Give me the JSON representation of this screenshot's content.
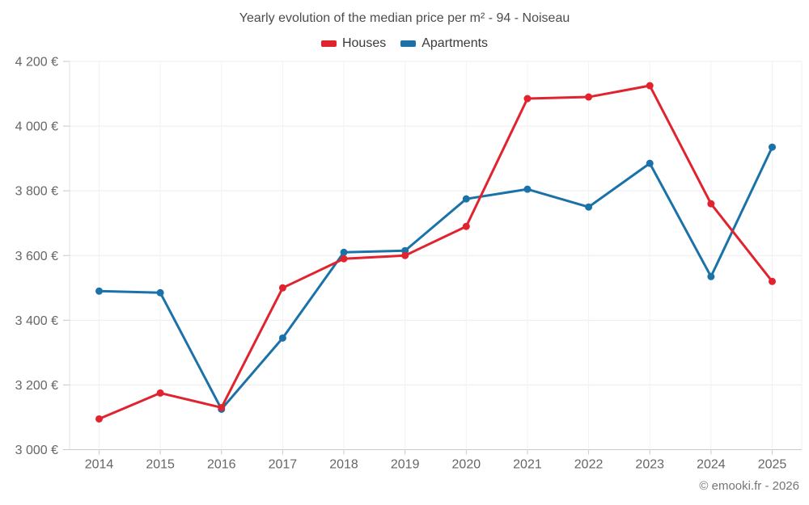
{
  "footer": {
    "credit": "© emooki.fr - 2026"
  },
  "chart_data": {
    "type": "line",
    "title": "Yearly evolution of the median price per m² - 94 - Noiseau",
    "categories": [
      "2014",
      "2015",
      "2016",
      "2017",
      "2018",
      "2019",
      "2020",
      "2021",
      "2022",
      "2023",
      "2024",
      "2025"
    ],
    "series": [
      {
        "name": "Houses",
        "color": "#e0232e",
        "values": [
          3095,
          3175,
          3130,
          3500,
          3590,
          3600,
          3690,
          4085,
          4090,
          4125,
          3760,
          3520
        ]
      },
      {
        "name": "Apartments",
        "color": "#1a72a8",
        "values": [
          3490,
          3485,
          3125,
          3345,
          3610,
          3615,
          3775,
          3805,
          3750,
          3885,
          3535,
          3935
        ]
      }
    ],
    "ylim": [
      3000,
      4200
    ],
    "yticks": [
      {
        "value": 3000,
        "label": "3 000 €"
      },
      {
        "value": 3200,
        "label": "3 200 €"
      },
      {
        "value": 3400,
        "label": "3 400 €"
      },
      {
        "value": 3600,
        "label": "3 600 €"
      },
      {
        "value": 3800,
        "label": "3 800 €"
      },
      {
        "value": 4000,
        "label": "4 000 €"
      },
      {
        "value": 4200,
        "label": "4 200 €"
      }
    ],
    "grid": true,
    "legend_position": "top",
    "marker": "circle"
  }
}
